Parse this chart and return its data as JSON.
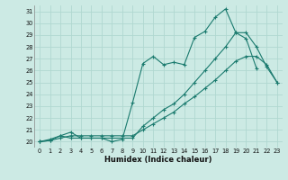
{
  "title": "",
  "xlabel": "Humidex (Indice chaleur)",
  "bg_color": "#cceae4",
  "grid_color": "#b0d8d0",
  "line_color": "#1a7a6e",
  "xlim": [
    -0.5,
    23.5
  ],
  "ylim": [
    19.5,
    31.5
  ],
  "xticks": [
    0,
    1,
    2,
    3,
    4,
    5,
    6,
    7,
    8,
    9,
    10,
    11,
    12,
    13,
    14,
    15,
    16,
    17,
    18,
    19,
    20,
    21,
    22,
    23
  ],
  "yticks": [
    20,
    21,
    22,
    23,
    24,
    25,
    26,
    27,
    28,
    29,
    30,
    31
  ],
  "line1_x": [
    0,
    1,
    2,
    3,
    4,
    5,
    6,
    7,
    8,
    9,
    10,
    11,
    12,
    13,
    14,
    15,
    16,
    17,
    18,
    19,
    20,
    21
  ],
  "line1_y": [
    20.0,
    20.1,
    20.5,
    20.3,
    20.3,
    20.3,
    20.3,
    20.0,
    20.2,
    23.3,
    26.6,
    27.2,
    26.5,
    26.7,
    26.5,
    28.8,
    29.3,
    30.5,
    31.2,
    29.2,
    28.7,
    26.2
  ],
  "line2_x": [
    0,
    1,
    2,
    3,
    4,
    5,
    6,
    7,
    8,
    9,
    10,
    11,
    12,
    13,
    14,
    15,
    16,
    17,
    18,
    19,
    20,
    21,
    22,
    23
  ],
  "line2_y": [
    20.0,
    20.2,
    20.5,
    20.8,
    20.3,
    20.3,
    20.3,
    20.3,
    20.3,
    20.3,
    21.3,
    22.0,
    22.7,
    23.2,
    24.0,
    25.0,
    26.0,
    27.0,
    28.0,
    29.2,
    29.2,
    28.0,
    26.3,
    25.0
  ],
  "line3_x": [
    0,
    1,
    2,
    3,
    4,
    5,
    6,
    7,
    8,
    9,
    10,
    11,
    12,
    13,
    14,
    15,
    16,
    17,
    18,
    19,
    20,
    21,
    22,
    23
  ],
  "line3_y": [
    20.0,
    20.1,
    20.3,
    20.5,
    20.5,
    20.5,
    20.5,
    20.5,
    20.5,
    20.5,
    21.0,
    21.5,
    22.0,
    22.5,
    23.2,
    23.8,
    24.5,
    25.2,
    26.0,
    26.8,
    27.2,
    27.2,
    26.5,
    25.0
  ]
}
